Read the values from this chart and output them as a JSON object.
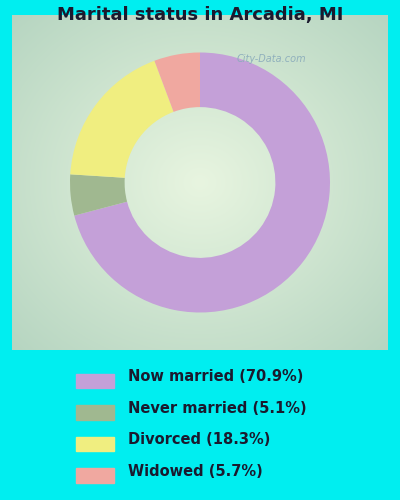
{
  "title": "Marital status in Arcadia, MI",
  "title_fontsize": 13,
  "title_color": "#1a1a2e",
  "bg_cyan": "#00eef0",
  "bg_chart": "#d8edd8",
  "slices": [
    {
      "label": "Now married (70.9%)",
      "value": 70.9,
      "color": "#c4a0d8"
    },
    {
      "label": "Never married (5.1%)",
      "value": 5.1,
      "color": "#a0b890"
    },
    {
      "label": "Divorced (18.3%)",
      "value": 18.3,
      "color": "#f0ee80"
    },
    {
      "label": "Widowed (5.7%)",
      "value": 5.7,
      "color": "#f0a8a0"
    }
  ],
  "legend_fontsize": 10.5,
  "legend_text_color": "#1a1a2e",
  "watermark": "City-Data.com",
  "donut_width": 0.42
}
